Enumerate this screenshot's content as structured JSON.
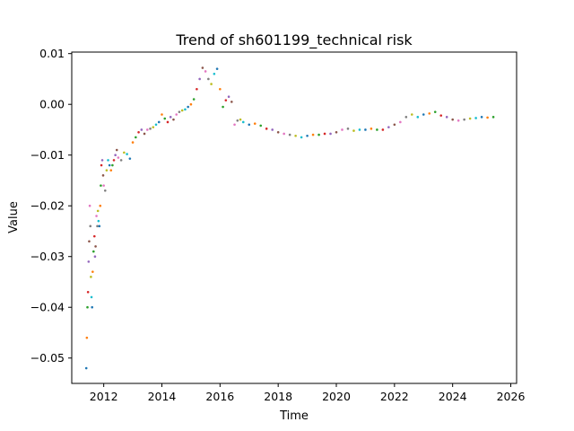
{
  "chart_data": {
    "type": "scatter",
    "title": "Trend of sh601199_technical risk",
    "xlabel": "Time",
    "ylabel": "Value",
    "xlim": [
      2010.9,
      2026.2
    ],
    "ylim": [
      -0.055,
      0.0103
    ],
    "x_ticks": [
      2012,
      2014,
      2016,
      2018,
      2020,
      2022,
      2024,
      2026
    ],
    "x_tick_labels": [
      "2012",
      "2014",
      "2016",
      "2018",
      "2020",
      "2022",
      "2024",
      "2026"
    ],
    "y_ticks": [
      -0.05,
      -0.04,
      -0.03,
      -0.02,
      -0.01,
      0.0,
      0.01
    ],
    "y_tick_labels": [
      "−0.05",
      "−0.04",
      "−0.03",
      "−0.02",
      "−0.01",
      "0.00",
      "0.01"
    ],
    "grid": false,
    "legend": "none",
    "marker_colors": [
      "#1f77b4",
      "#ff7f0e",
      "#2ca02c",
      "#d62728",
      "#9467bd",
      "#8c564b",
      "#e377c2",
      "#7f7f7f",
      "#bcbd22",
      "#17becf"
    ],
    "series": [
      {
        "x": [
          2011.4,
          2011.42,
          2011.44,
          2011.46,
          2011.48,
          2011.5,
          2011.52,
          2011.54,
          2011.56,
          2011.58,
          2011.6,
          2011.62,
          2011.65,
          2011.68,
          2011.7,
          2011.72,
          2011.75,
          2011.78,
          2011.8,
          2011.82,
          2011.85,
          2011.88,
          2011.9,
          2011.92,
          2011.95,
          2011.98,
          2012.0,
          2012.05,
          2012.1,
          2012.15,
          2012.2,
          2012.25,
          2012.3,
          2012.35,
          2012.4,
          2012.45,
          2012.5,
          2012.6,
          2012.7,
          2012.8,
          2012.9,
          2013.0,
          2013.1,
          2013.2,
          2013.3,
          2013.4,
          2013.5,
          2013.6,
          2013.7,
          2013.8,
          2013.9,
          2014.0,
          2014.1,
          2014.2,
          2014.3,
          2014.4,
          2014.5,
          2014.6,
          2014.7,
          2014.8,
          2014.9,
          2015.0,
          2015.1,
          2015.2,
          2015.3,
          2015.4,
          2015.5,
          2015.6,
          2015.7,
          2015.8,
          2015.9,
          2016.0,
          2016.1,
          2016.2,
          2016.3,
          2016.4,
          2016.5,
          2016.6,
          2016.7,
          2016.8,
          2017.0,
          2017.2,
          2017.4,
          2017.6,
          2017.8,
          2018.0,
          2018.2,
          2018.4,
          2018.6,
          2018.8,
          2019.0,
          2019.2,
          2019.4,
          2019.6,
          2019.8,
          2020.0,
          2020.2,
          2020.4,
          2020.6,
          2020.8,
          2021.0,
          2021.2,
          2021.4,
          2021.6,
          2021.8,
          2022.0,
          2022.2,
          2022.4,
          2022.6,
          2022.8,
          2023.0,
          2023.2,
          2023.4,
          2023.6,
          2023.8,
          2024.0,
          2024.2,
          2024.4,
          2024.6,
          2024.8,
          2025.0,
          2025.2,
          2025.4
        ],
        "y": [
          -0.052,
          -0.046,
          -0.04,
          -0.037,
          -0.031,
          -0.027,
          -0.02,
          -0.024,
          -0.034,
          -0.038,
          -0.04,
          -0.033,
          -0.029,
          -0.026,
          -0.03,
          -0.028,
          -0.022,
          -0.024,
          -0.021,
          -0.023,
          -0.024,
          -0.02,
          -0.016,
          -0.012,
          -0.011,
          -0.014,
          -0.016,
          -0.017,
          -0.013,
          -0.011,
          -0.012,
          -0.013,
          -0.012,
          -0.011,
          -0.01,
          -0.009,
          -0.0105,
          -0.011,
          -0.0095,
          -0.0098,
          -0.0107,
          -0.0075,
          -0.0065,
          -0.0055,
          -0.005,
          -0.0058,
          -0.005,
          -0.0048,
          -0.0045,
          -0.004,
          -0.0035,
          -0.002,
          -0.0028,
          -0.0035,
          -0.0025,
          -0.003,
          -0.002,
          -0.0015,
          -0.0012,
          -0.001,
          -0.0005,
          0.0,
          0.001,
          0.003,
          0.005,
          0.0072,
          0.0065,
          0.005,
          0.004,
          0.006,
          0.007,
          0.003,
          -0.0005,
          0.0008,
          0.0015,
          0.0005,
          -0.004,
          -0.0032,
          -0.003,
          -0.0035,
          -0.004,
          -0.0038,
          -0.0042,
          -0.0048,
          -0.005,
          -0.0055,
          -0.0058,
          -0.006,
          -0.0062,
          -0.0065,
          -0.0062,
          -0.006,
          -0.006,
          -0.0058,
          -0.0058,
          -0.0055,
          -0.005,
          -0.0048,
          -0.0052,
          -0.005,
          -0.005,
          -0.0048,
          -0.005,
          -0.005,
          -0.0045,
          -0.004,
          -0.0035,
          -0.0025,
          -0.002,
          -0.0025,
          -0.002,
          -0.0018,
          -0.0015,
          -0.0022,
          -0.0025,
          -0.003,
          -0.0032,
          -0.003,
          -0.0028,
          -0.0027,
          -0.0025,
          -0.0026,
          -0.0025
        ]
      }
    ]
  }
}
